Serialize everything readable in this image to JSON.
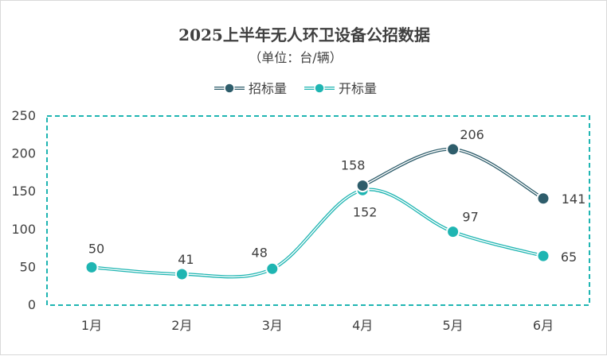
{
  "chart_data": {
    "type": "line",
    "title": "2025上半年无人环卫设备公招数据",
    "subtitle": "（单位：台/辆）",
    "categories": [
      "1月",
      "2月",
      "3月",
      "4月",
      "5月",
      "6月"
    ],
    "series": [
      {
        "name": "招标量",
        "values": [
          null,
          null,
          null,
          158,
          206,
          141
        ],
        "color": "#2e5d6b"
      },
      {
        "name": "开标量",
        "values": [
          50,
          41,
          48,
          152,
          97,
          65
        ],
        "color": "#1fb5b2"
      }
    ],
    "ylim": [
      0,
      250
    ],
    "yticks": [
      0,
      50,
      100,
      150,
      200,
      250
    ],
    "legend": "top-center",
    "grid": false,
    "smooth": true
  }
}
